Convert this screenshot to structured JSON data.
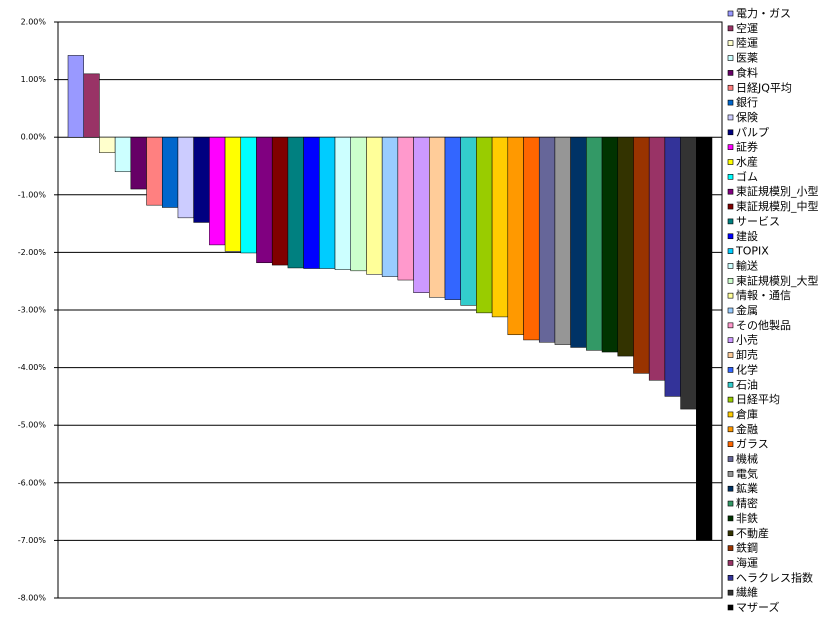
{
  "chart_data": {
    "type": "bar",
    "ylim": [
      -8,
      2
    ],
    "yticks": [
      {
        "value": 2,
        "label": "2.00%"
      },
      {
        "value": 1,
        "label": "1.00%"
      },
      {
        "value": 0,
        "label": "0.00%"
      },
      {
        "value": -1,
        "label": "-1.00%"
      },
      {
        "value": -2,
        "label": "-2.00%"
      },
      {
        "value": -3,
        "label": "-3.00%"
      },
      {
        "value": -4,
        "label": "-4.00%"
      },
      {
        "value": -5,
        "label": "-5.00%"
      },
      {
        "value": -6,
        "label": "-6.00%"
      },
      {
        "value": -7,
        "label": "-7.00%"
      },
      {
        "value": -8,
        "label": "-8.00%"
      }
    ],
    "grid": true,
    "legend": "right",
    "series": [
      {
        "name": "電力・ガス",
        "color": "#9999ff",
        "values": [
          1.42
        ]
      },
      {
        "name": "空運",
        "color": "#993366",
        "values": [
          1.1
        ]
      },
      {
        "name": "陸運",
        "color": "#ffffcc",
        "values": [
          -0.27
        ]
      },
      {
        "name": "医薬",
        "color": "#ccffff",
        "values": [
          -0.6
        ]
      },
      {
        "name": "食料",
        "color": "#660066",
        "values": [
          -0.9
        ]
      },
      {
        "name": "日経JQ平均",
        "color": "#ff8080",
        "values": [
          -1.18
        ]
      },
      {
        "name": "銀行",
        "color": "#0066cc",
        "values": [
          -1.22
        ]
      },
      {
        "name": "保険",
        "color": "#ccccff",
        "values": [
          -1.4
        ]
      },
      {
        "name": "パルプ",
        "color": "#000080",
        "values": [
          -1.48
        ]
      },
      {
        "name": "証券",
        "color": "#ff00ff",
        "values": [
          -1.87
        ]
      },
      {
        "name": "水産",
        "color": "#ffff00",
        "values": [
          -1.98
        ]
      },
      {
        "name": "ゴム",
        "color": "#00ffff",
        "values": [
          -2.01
        ]
      },
      {
        "name": "東証規模別_小型",
        "color": "#800080",
        "values": [
          -2.18
        ]
      },
      {
        "name": "東証規模別_中型",
        "color": "#800000",
        "values": [
          -2.22
        ]
      },
      {
        "name": "サービス",
        "color": "#008080",
        "values": [
          -2.27
        ]
      },
      {
        "name": "建設",
        "color": "#0000ff",
        "values": [
          -2.28
        ]
      },
      {
        "name": "TOPIX",
        "color": "#00ccff",
        "values": [
          -2.28
        ]
      },
      {
        "name": "輸送",
        "color": "#ccffff",
        "values": [
          -2.3
        ]
      },
      {
        "name": "東証規模別_大型",
        "color": "#ccffcc",
        "values": [
          -2.32
        ]
      },
      {
        "name": "情報・通信",
        "color": "#ffff99",
        "values": [
          -2.38
        ]
      },
      {
        "name": "金属",
        "color": "#99ccff",
        "values": [
          -2.42
        ]
      },
      {
        "name": "その他製品",
        "color": "#ff99cc",
        "values": [
          -2.48
        ]
      },
      {
        "name": "小売",
        "color": "#cc99ff",
        "values": [
          -2.7
        ]
      },
      {
        "name": "卸売",
        "color": "#ffcc99",
        "values": [
          -2.78
        ]
      },
      {
        "name": "化学",
        "color": "#3366ff",
        "values": [
          -2.82
        ]
      },
      {
        "name": "石油",
        "color": "#33cccc",
        "values": [
          -2.92
        ]
      },
      {
        "name": "日経平均",
        "color": "#99cc00",
        "values": [
          -3.05
        ]
      },
      {
        "name": "倉庫",
        "color": "#ffcc00",
        "values": [
          -3.12
        ]
      },
      {
        "name": "金融",
        "color": "#ff9900",
        "values": [
          -3.43
        ]
      },
      {
        "name": "ガラス",
        "color": "#ff6600",
        "values": [
          -3.52
        ]
      },
      {
        "name": "機械",
        "color": "#666699",
        "values": [
          -3.56
        ]
      },
      {
        "name": "電気",
        "color": "#969696",
        "values": [
          -3.6
        ]
      },
      {
        "name": "鉱業",
        "color": "#003366",
        "values": [
          -3.65
        ]
      },
      {
        "name": "精密",
        "color": "#339966",
        "values": [
          -3.7
        ]
      },
      {
        "name": "非鉄",
        "color": "#003300",
        "values": [
          -3.73
        ]
      },
      {
        "name": "不動産",
        "color": "#333300",
        "values": [
          -3.8
        ]
      },
      {
        "name": "鉄鋼",
        "color": "#993300",
        "values": [
          -4.1
        ]
      },
      {
        "name": "海運",
        "color": "#993366",
        "values": [
          -4.22
        ]
      },
      {
        "name": "ヘラクレス指数",
        "color": "#333399",
        "values": [
          -4.5
        ]
      },
      {
        "name": "繊維",
        "color": "#333333",
        "values": [
          -4.72
        ]
      },
      {
        "name": "マザーズ",
        "color": "#000000",
        "values": [
          -7.0
        ]
      }
    ]
  }
}
